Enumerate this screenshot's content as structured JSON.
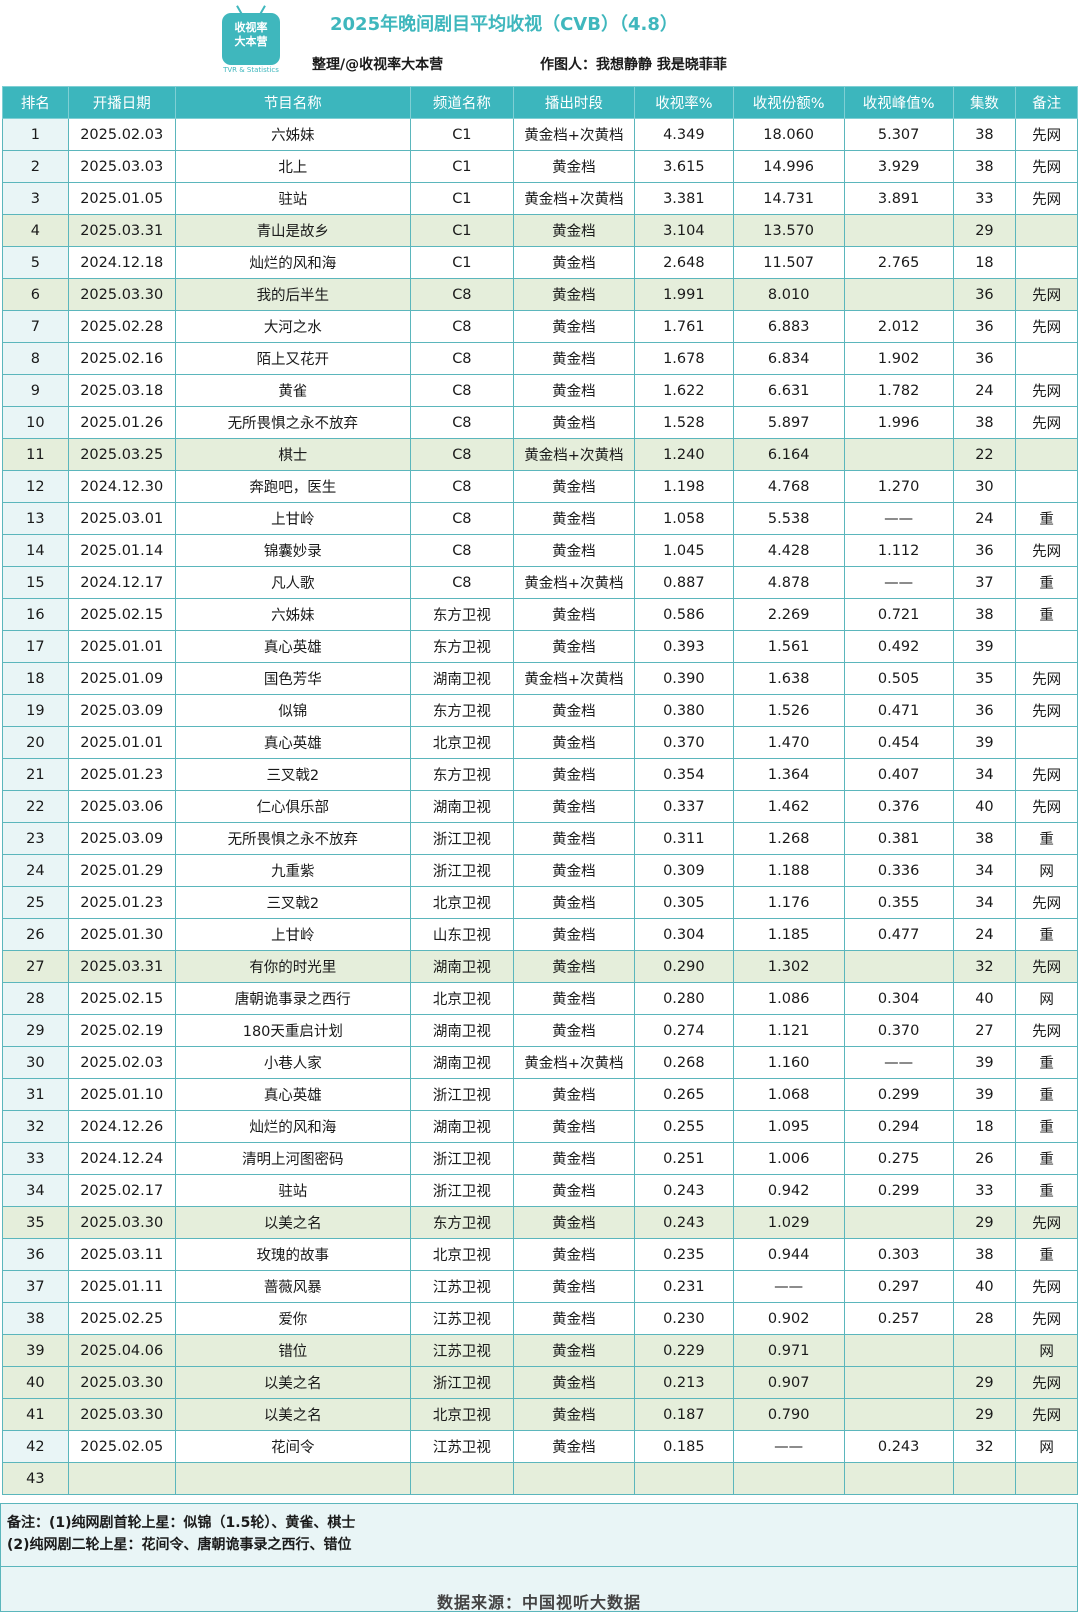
{
  "logo": {
    "line1": "收视率",
    "line2": "大本营",
    "sub": "TVR & Statistics"
  },
  "title": "2025年晚间剧目平均收视（CVB）（4.8）",
  "credit_left": "整理/@收视率大本营",
  "credit_right": "作图人：我想静静  我是晓菲菲",
  "columns": [
    "排名",
    "开播日期",
    "节目名称",
    "频道名称",
    "播出时段",
    "收视率%",
    "收视份额%",
    "收视峰值%",
    "集数",
    "备注"
  ],
  "rows": [
    [
      "1",
      "2025.02.03",
      "六姊妹",
      "C1",
      "黄金档+次黄档",
      "4.349",
      "18.060",
      "5.307",
      "38",
      "先网"
    ],
    [
      "2",
      "2025.03.03",
      "北上",
      "C1",
      "黄金档",
      "3.615",
      "14.996",
      "3.929",
      "38",
      "先网"
    ],
    [
      "3",
      "2025.01.05",
      "驻站",
      "C1",
      "黄金档+次黄档",
      "3.381",
      "14.731",
      "3.891",
      "33",
      "先网"
    ],
    [
      "4",
      "2025.03.31",
      "青山是故乡",
      "C1",
      "黄金档",
      "3.104",
      "13.570",
      "",
      "29",
      ""
    ],
    [
      "5",
      "2024.12.18",
      "灿烂的风和海",
      "C1",
      "黄金档",
      "2.648",
      "11.507",
      "2.765",
      "18",
      ""
    ],
    [
      "6",
      "2025.03.30",
      "我的后半生",
      "C8",
      "黄金档",
      "1.991",
      "8.010",
      "",
      "36",
      "先网"
    ],
    [
      "7",
      "2025.02.28",
      "大河之水",
      "C8",
      "黄金档",
      "1.761",
      "6.883",
      "2.012",
      "36",
      "先网"
    ],
    [
      "8",
      "2025.02.16",
      "陌上又花开",
      "C8",
      "黄金档",
      "1.678",
      "6.834",
      "1.902",
      "36",
      ""
    ],
    [
      "9",
      "2025.03.18",
      "黄雀",
      "C8",
      "黄金档",
      "1.622",
      "6.631",
      "1.782",
      "24",
      "先网"
    ],
    [
      "10",
      "2025.01.26",
      "无所畏惧之永不放弃",
      "C8",
      "黄金档",
      "1.528",
      "5.897",
      "1.996",
      "38",
      "先网"
    ],
    [
      "11",
      "2025.03.25",
      "棋士",
      "C8",
      "黄金档+次黄档",
      "1.240",
      "6.164",
      "",
      "22",
      ""
    ],
    [
      "12",
      "2024.12.30",
      "奔跑吧，医生",
      "C8",
      "黄金档",
      "1.198",
      "4.768",
      "1.270",
      "30",
      ""
    ],
    [
      "13",
      "2025.03.01",
      "上甘岭",
      "C8",
      "黄金档",
      "1.058",
      "5.538",
      "——",
      "24",
      "重"
    ],
    [
      "14",
      "2025.01.14",
      "锦囊妙录",
      "C8",
      "黄金档",
      "1.045",
      "4.428",
      "1.112",
      "36",
      "先网"
    ],
    [
      "15",
      "2024.12.17",
      "凡人歌",
      "C8",
      "黄金档+次黄档",
      "0.887",
      "4.878",
      "——",
      "37",
      "重"
    ],
    [
      "16",
      "2025.02.15",
      "六姊妹",
      "东方卫视",
      "黄金档",
      "0.586",
      "2.269",
      "0.721",
      "38",
      "重"
    ],
    [
      "17",
      "2025.01.01",
      "真心英雄",
      "东方卫视",
      "黄金档",
      "0.393",
      "1.561",
      "0.492",
      "39",
      ""
    ],
    [
      "18",
      "2025.01.09",
      "国色芳华",
      "湖南卫视",
      "黄金档+次黄档",
      "0.390",
      "1.638",
      "0.505",
      "35",
      "先网"
    ],
    [
      "19",
      "2025.03.09",
      "似锦",
      "东方卫视",
      "黄金档",
      "0.380",
      "1.526",
      "0.471",
      "36",
      "先网"
    ],
    [
      "20",
      "2025.01.01",
      "真心英雄",
      "北京卫视",
      "黄金档",
      "0.370",
      "1.470",
      "0.454",
      "39",
      ""
    ],
    [
      "21",
      "2025.01.23",
      "三叉戟2",
      "东方卫视",
      "黄金档",
      "0.354",
      "1.364",
      "0.407",
      "34",
      "先网"
    ],
    [
      "22",
      "2025.03.06",
      "仁心俱乐部",
      "湖南卫视",
      "黄金档",
      "0.337",
      "1.462",
      "0.376",
      "40",
      "先网"
    ],
    [
      "23",
      "2025.03.09",
      "无所畏惧之永不放弃",
      "浙江卫视",
      "黄金档",
      "0.311",
      "1.268",
      "0.381",
      "38",
      "重"
    ],
    [
      "24",
      "2025.01.29",
      "九重紫",
      "浙江卫视",
      "黄金档",
      "0.309",
      "1.188",
      "0.336",
      "34",
      "网"
    ],
    [
      "25",
      "2025.01.23",
      "三叉戟2",
      "北京卫视",
      "黄金档",
      "0.305",
      "1.176",
      "0.355",
      "34",
      "先网"
    ],
    [
      "26",
      "2025.01.30",
      "上甘岭",
      "山东卫视",
      "黄金档",
      "0.304",
      "1.185",
      "0.477",
      "24",
      "重"
    ],
    [
      "27",
      "2025.03.31",
      "有你的时光里",
      "湖南卫视",
      "黄金档",
      "0.290",
      "1.302",
      "",
      "32",
      "先网"
    ],
    [
      "28",
      "2025.02.15",
      "唐朝诡事录之西行",
      "北京卫视",
      "黄金档",
      "0.280",
      "1.086",
      "0.304",
      "40",
      "网"
    ],
    [
      "29",
      "2025.02.19",
      "180天重启计划",
      "湖南卫视",
      "黄金档",
      "0.274",
      "1.121",
      "0.370",
      "27",
      "先网"
    ],
    [
      "30",
      "2025.02.03",
      "小巷人家",
      "湖南卫视",
      "黄金档+次黄档",
      "0.268",
      "1.160",
      "——",
      "39",
      "重"
    ],
    [
      "31",
      "2025.01.10",
      "真心英雄",
      "浙江卫视",
      "黄金档",
      "0.265",
      "1.068",
      "0.299",
      "39",
      "重"
    ],
    [
      "32",
      "2024.12.26",
      "灿烂的风和海",
      "湖南卫视",
      "黄金档",
      "0.255",
      "1.095",
      "0.294",
      "18",
      "重"
    ],
    [
      "33",
      "2024.12.24",
      "清明上河图密码",
      "浙江卫视",
      "黄金档",
      "0.251",
      "1.006",
      "0.275",
      "26",
      "重"
    ],
    [
      "34",
      "2025.02.17",
      "驻站",
      "浙江卫视",
      "黄金档",
      "0.243",
      "0.942",
      "0.299",
      "33",
      "重"
    ],
    [
      "35",
      "2025.03.30",
      "以美之名",
      "东方卫视",
      "黄金档",
      "0.243",
      "1.029",
      "",
      "29",
      "先网"
    ],
    [
      "36",
      "2025.03.11",
      "玫瑰的故事",
      "北京卫视",
      "黄金档",
      "0.235",
      "0.944",
      "0.303",
      "38",
      "重"
    ],
    [
      "37",
      "2025.01.11",
      "蔷薇风暴",
      "江苏卫视",
      "黄金档",
      "0.231",
      "——",
      "0.297",
      "40",
      "先网"
    ],
    [
      "38",
      "2025.02.25",
      "爱你",
      "江苏卫视",
      "黄金档",
      "0.230",
      "0.902",
      "0.257",
      "28",
      "先网"
    ],
    [
      "39",
      "2025.04.06",
      "错位",
      "江苏卫视",
      "黄金档",
      "0.229",
      "0.971",
      "",
      "",
      "网"
    ],
    [
      "40",
      "2025.03.30",
      "以美之名",
      "浙江卫视",
      "黄金档",
      "0.213",
      "0.907",
      "",
      "29",
      "先网"
    ],
    [
      "41",
      "2025.03.30",
      "以美之名",
      "北京卫视",
      "黄金档",
      "0.187",
      "0.790",
      "",
      "29",
      "先网"
    ],
    [
      "42",
      "2025.02.05",
      "花间令",
      "江苏卫视",
      "黄金档",
      "0.185",
      "——",
      "0.243",
      "32",
      "网"
    ],
    [
      "43",
      "",
      "",
      "",
      "",
      "",
      "",
      "",
      "",
      ""
    ]
  ],
  "highlight_rows": [
    4,
    6,
    11,
    27,
    35,
    39,
    40,
    41,
    43
  ],
  "notes": {
    "line1": "备注：(1)纯网剧首轮上星：似锦（1.5轮）、黄雀、棋士",
    "line2": "(2)纯网剧二轮上星：花间令、唐朝诡事录之西行、错位"
  },
  "footer": "数据来源：中国视听大数据",
  "colors": {
    "accent": "#3cb6bd",
    "highlight": "#e5eedb",
    "rank_bg": "#e9f5f6"
  }
}
